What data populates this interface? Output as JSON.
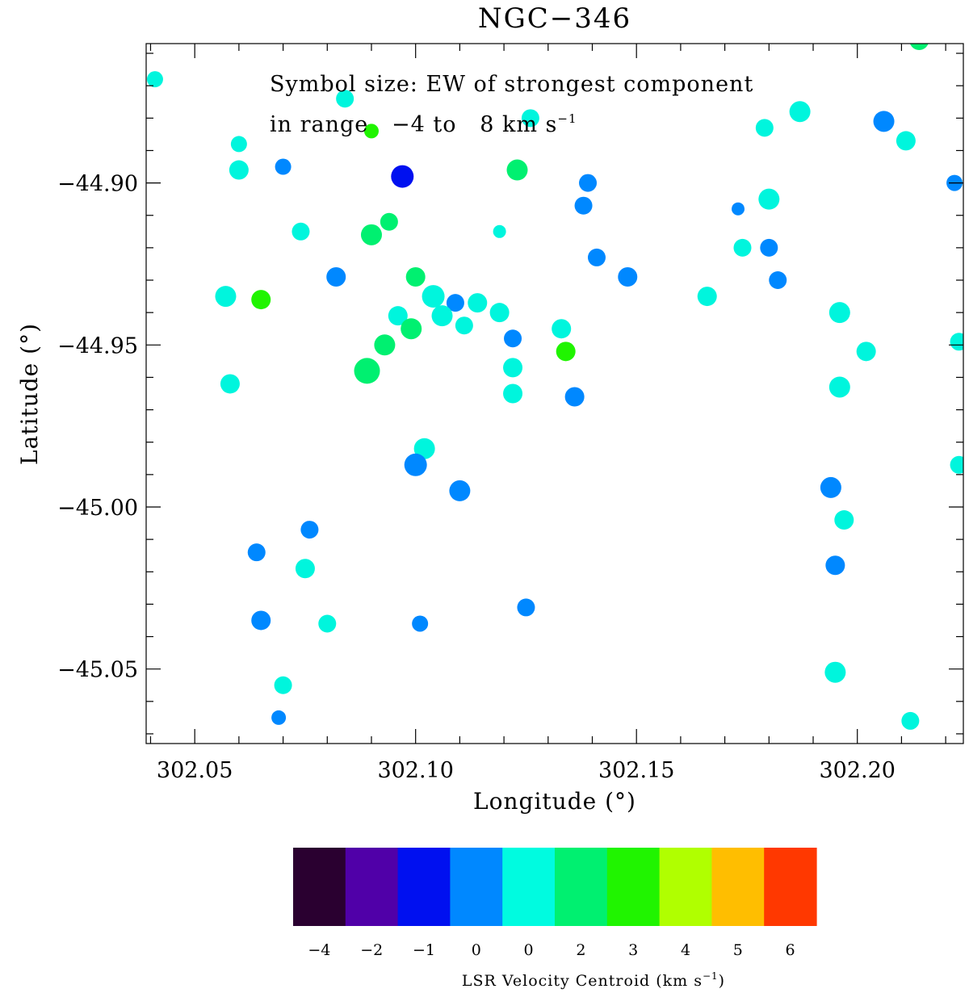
{
  "chart_data": {
    "type": "scatter",
    "title": "NGC−346",
    "xlabel": "Longitude (°)",
    "ylabel": "Latitude (°)",
    "xlim": [
      302.039,
      302.224
    ],
    "ylim": [
      -45.073,
      -44.857
    ],
    "x_ticks": [
      302.05,
      302.1,
      302.15,
      302.2
    ],
    "x_tick_labels": [
      "302.05",
      "302.10",
      "302.15",
      "302.20"
    ],
    "y_ticks": [
      -44.9,
      -44.95,
      -45.0,
      -45.05
    ],
    "y_tick_labels": [
      "−44.90",
      "−44.95",
      "−45.00",
      "−45.05"
    ],
    "annotation": {
      "line1": "Symbol size: EW of strongest component",
      "line2": "in range   −4 to   8 km s",
      "line2_sup": "−1"
    },
    "colorbar": {
      "label": "LSR Velocity Centroid (km s",
      "label_sup": "−1",
      "label_end": ")",
      "colors": [
        "#2a0030",
        "#5000a8",
        "#0010f0",
        "#0088ff",
        "#00fbe0",
        "#00f070",
        "#20f400",
        "#b0ff00",
        "#ffbe00",
        "#ff3800"
      ],
      "tick_labels": [
        "−4",
        "−2",
        "−1",
        "0",
        "0",
        "2",
        "3",
        "4",
        "5",
        "6"
      ]
    },
    "points": [
      {
        "x": 302.041,
        "y": -44.868,
        "c": "#00f5dd",
        "s": 10
      },
      {
        "x": 302.084,
        "y": -44.874,
        "c": "#00f5dd",
        "s": 11
      },
      {
        "x": 302.126,
        "y": -44.88,
        "c": "#00f5dd",
        "s": 11
      },
      {
        "x": 302.187,
        "y": -44.878,
        "c": "#00f5dd",
        "s": 13
      },
      {
        "x": 302.179,
        "y": -44.883,
        "c": "#00f5dd",
        "s": 11
      },
      {
        "x": 302.206,
        "y": -44.881,
        "c": "#0088ff",
        "s": 13
      },
      {
        "x": 302.214,
        "y": -44.856,
        "c": "#00f070",
        "s": 12
      },
      {
        "x": 302.211,
        "y": -44.887,
        "c": "#00f5dd",
        "s": 12
      },
      {
        "x": 302.09,
        "y": -44.884,
        "c": "#20f400",
        "s": 9
      },
      {
        "x": 302.06,
        "y": -44.888,
        "c": "#00f5dd",
        "s": 10
      },
      {
        "x": 302.06,
        "y": -44.896,
        "c": "#00f5dd",
        "s": 12
      },
      {
        "x": 302.07,
        "y": -44.895,
        "c": "#0088ff",
        "s": 10
      },
      {
        "x": 302.097,
        "y": -44.898,
        "c": "#0010f0",
        "s": 14
      },
      {
        "x": 302.123,
        "y": -44.896,
        "c": "#00f070",
        "s": 13
      },
      {
        "x": 302.139,
        "y": -44.9,
        "c": "#0088ff",
        "s": 11
      },
      {
        "x": 302.138,
        "y": -44.907,
        "c": "#0088ff",
        "s": 11
      },
      {
        "x": 302.18,
        "y": -44.905,
        "c": "#00f5dd",
        "s": 13
      },
      {
        "x": 302.222,
        "y": -44.9,
        "c": "#0088ff",
        "s": 10
      },
      {
        "x": 302.173,
        "y": -44.908,
        "c": "#0088ff",
        "s": 8
      },
      {
        "x": 302.074,
        "y": -44.915,
        "c": "#00f5dd",
        "s": 11
      },
      {
        "x": 302.09,
        "y": -44.916,
        "c": "#00f070",
        "s": 13
      },
      {
        "x": 302.094,
        "y": -44.912,
        "c": "#00f070",
        "s": 11
      },
      {
        "x": 302.119,
        "y": -44.915,
        "c": "#00f5dd",
        "s": 8
      },
      {
        "x": 302.174,
        "y": -44.92,
        "c": "#00f5dd",
        "s": 11
      },
      {
        "x": 302.18,
        "y": -44.92,
        "c": "#0088ff",
        "s": 11
      },
      {
        "x": 302.141,
        "y": -44.923,
        "c": "#0088ff",
        "s": 11
      },
      {
        "x": 302.082,
        "y": -44.929,
        "c": "#0088ff",
        "s": 12
      },
      {
        "x": 302.1,
        "y": -44.929,
        "c": "#00f070",
        "s": 12
      },
      {
        "x": 302.148,
        "y": -44.929,
        "c": "#0088ff",
        "s": 12
      },
      {
        "x": 302.182,
        "y": -44.93,
        "c": "#0088ff",
        "s": 11
      },
      {
        "x": 302.057,
        "y": -44.935,
        "c": "#00f5dd",
        "s": 13
      },
      {
        "x": 302.065,
        "y": -44.936,
        "c": "#20f400",
        "s": 12
      },
      {
        "x": 302.104,
        "y": -44.935,
        "c": "#00f5dd",
        "s": 14
      },
      {
        "x": 302.109,
        "y": -44.937,
        "c": "#0088ff",
        "s": 11
      },
      {
        "x": 302.114,
        "y": -44.937,
        "c": "#00f5dd",
        "s": 12
      },
      {
        "x": 302.166,
        "y": -44.935,
        "c": "#00f5dd",
        "s": 12
      },
      {
        "x": 302.096,
        "y": -44.941,
        "c": "#00f5dd",
        "s": 12
      },
      {
        "x": 302.106,
        "y": -44.941,
        "c": "#00f5dd",
        "s": 13
      },
      {
        "x": 302.119,
        "y": -44.94,
        "c": "#00f5dd",
        "s": 12
      },
      {
        "x": 302.196,
        "y": -44.94,
        "c": "#00f5dd",
        "s": 13
      },
      {
        "x": 302.099,
        "y": -44.945,
        "c": "#00f070",
        "s": 13
      },
      {
        "x": 302.111,
        "y": -44.944,
        "c": "#00f5dd",
        "s": 11
      },
      {
        "x": 302.133,
        "y": -44.945,
        "c": "#00f5dd",
        "s": 12
      },
      {
        "x": 302.122,
        "y": -44.948,
        "c": "#0088ff",
        "s": 11
      },
      {
        "x": 302.093,
        "y": -44.95,
        "c": "#00f070",
        "s": 13
      },
      {
        "x": 302.134,
        "y": -44.952,
        "c": "#20f400",
        "s": 12
      },
      {
        "x": 302.202,
        "y": -44.952,
        "c": "#00f5dd",
        "s": 12
      },
      {
        "x": 302.223,
        "y": -44.949,
        "c": "#00f5dd",
        "s": 11
      },
      {
        "x": 302.122,
        "y": -44.957,
        "c": "#00f5dd",
        "s": 12
      },
      {
        "x": 302.089,
        "y": -44.958,
        "c": "#00f070",
        "s": 16
      },
      {
        "x": 302.058,
        "y": -44.962,
        "c": "#00f5dd",
        "s": 12
      },
      {
        "x": 302.196,
        "y": -44.963,
        "c": "#00f5dd",
        "s": 13
      },
      {
        "x": 302.122,
        "y": -44.965,
        "c": "#00f5dd",
        "s": 12
      },
      {
        "x": 302.136,
        "y": -44.966,
        "c": "#0088ff",
        "s": 12
      },
      {
        "x": 302.102,
        "y": -44.982,
        "c": "#00f5dd",
        "s": 13
      },
      {
        "x": 302.1,
        "y": -44.987,
        "c": "#0088ff",
        "s": 14
      },
      {
        "x": 302.223,
        "y": -44.987,
        "c": "#00f5dd",
        "s": 11
      },
      {
        "x": 302.11,
        "y": -44.995,
        "c": "#0088ff",
        "s": 13
      },
      {
        "x": 302.194,
        "y": -44.994,
        "c": "#0088ff",
        "s": 13
      },
      {
        "x": 302.197,
        "y": -45.004,
        "c": "#00f5dd",
        "s": 12
      },
      {
        "x": 302.076,
        "y": -45.007,
        "c": "#0088ff",
        "s": 11
      },
      {
        "x": 302.064,
        "y": -45.014,
        "c": "#0088ff",
        "s": 11
      },
      {
        "x": 302.075,
        "y": -45.019,
        "c": "#00f5dd",
        "s": 12
      },
      {
        "x": 302.195,
        "y": -45.018,
        "c": "#0088ff",
        "s": 12
      },
      {
        "x": 302.125,
        "y": -45.031,
        "c": "#0088ff",
        "s": 11
      },
      {
        "x": 302.065,
        "y": -45.035,
        "c": "#0088ff",
        "s": 12
      },
      {
        "x": 302.08,
        "y": -45.036,
        "c": "#00f5dd",
        "s": 11
      },
      {
        "x": 302.101,
        "y": -45.036,
        "c": "#0088ff",
        "s": 10
      },
      {
        "x": 302.195,
        "y": -45.051,
        "c": "#00f5dd",
        "s": 13
      },
      {
        "x": 302.07,
        "y": -45.055,
        "c": "#00f5dd",
        "s": 11
      },
      {
        "x": 302.069,
        "y": -45.065,
        "c": "#0088ff",
        "s": 9
      },
      {
        "x": 302.212,
        "y": -45.066,
        "c": "#00f5dd",
        "s": 11
      }
    ]
  }
}
